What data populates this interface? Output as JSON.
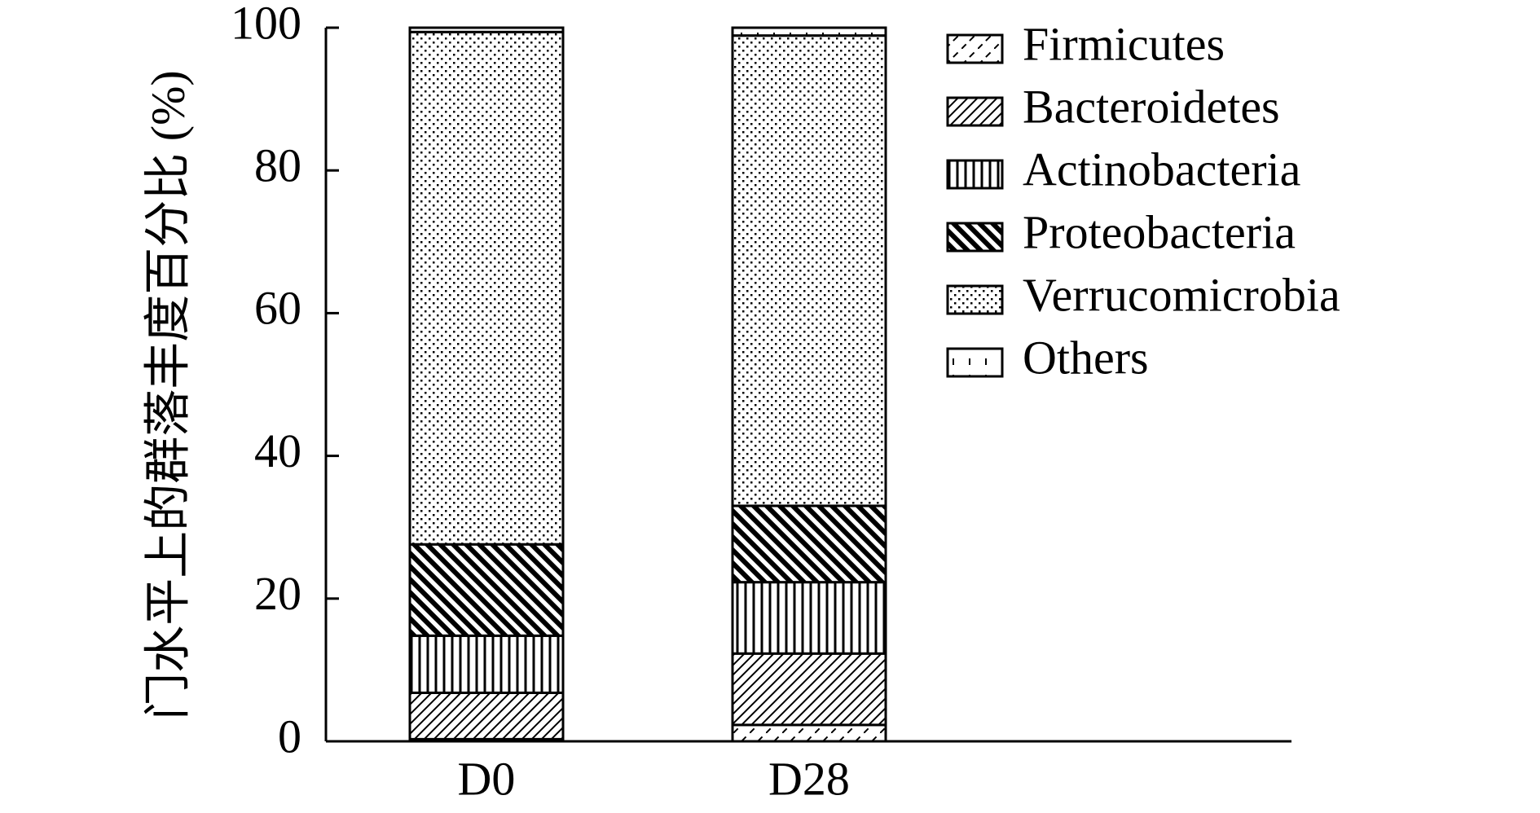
{
  "chart_data": {
    "type": "bar",
    "stacked": true,
    "title": "",
    "xlabel": "",
    "ylabel": "门水平上的群落丰度百分比 (%)",
    "ylim": [
      0,
      100
    ],
    "yticks": [
      0,
      20,
      40,
      60,
      80,
      100
    ],
    "categories": [
      "D0",
      "D28"
    ],
    "legend_position": "top-right",
    "grid": false,
    "series": [
      {
        "name": "Firmicutes",
        "pattern": "firmicutes-hatch",
        "values": [
          0.3,
          2.3
        ]
      },
      {
        "name": "Bacteroidetes",
        "pattern": "bacteroidetes-hatch",
        "values": [
          6.5,
          10.0
        ]
      },
      {
        "name": "Actinobacteria",
        "pattern": "actinobacteria-hatch",
        "values": [
          8.0,
          10.0
        ]
      },
      {
        "name": "Proteobacteria",
        "pattern": "proteobacteria-hatch",
        "values": [
          12.8,
          10.7
        ]
      },
      {
        "name": "Verrucomicrobia",
        "pattern": "verrucomicrobia-hatch",
        "values": [
          71.8,
          65.9
        ]
      },
      {
        "name": "Others",
        "pattern": "others-hatch",
        "values": [
          0.6,
          1.1
        ]
      }
    ]
  }
}
